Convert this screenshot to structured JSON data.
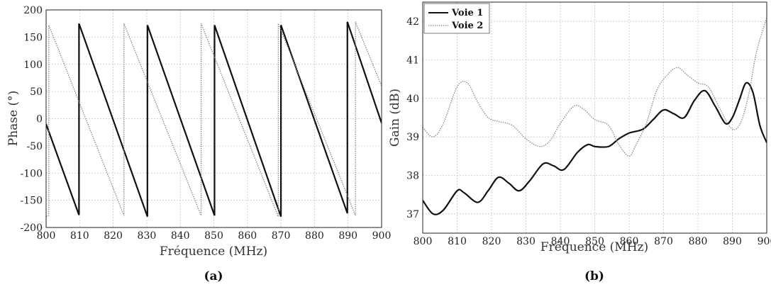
{
  "chart_data": [
    {
      "type": "line",
      "caption": "(a)",
      "xlabel": "Fréquence (MHz)",
      "ylabel": "Phase (°)",
      "xlim": [
        800,
        900
      ],
      "ylim": [
        -200,
        200
      ],
      "xticks": [
        800,
        810,
        820,
        830,
        840,
        850,
        860,
        870,
        880,
        890,
        900
      ],
      "yticks": [
        -200,
        -150,
        -100,
        -50,
        0,
        50,
        100,
        150,
        200
      ],
      "grid": true,
      "legend": "none",
      "series": [
        {
          "style": "solid",
          "color": "#111111",
          "x": [
            800,
            809.8,
            809.8,
            830.2,
            830.2,
            850.2,
            850.2,
            870,
            870,
            889.8,
            889.8,
            900
          ],
          "y": [
            -10,
            -177,
            175,
            -180,
            172,
            -178,
            172,
            -180,
            172,
            -174,
            178,
            -8
          ]
        },
        {
          "style": "dotted",
          "color": "#888888",
          "x": [
            800,
            800.8,
            800.8,
            823.2,
            823.2,
            846.2,
            846.2,
            869.2,
            869.2,
            892.2,
            892.2,
            900
          ],
          "y": [
            -180,
            -178,
            172,
            -178,
            175,
            -178,
            175,
            -180,
            175,
            -178,
            178,
            60
          ]
        }
      ]
    },
    {
      "type": "line",
      "caption": "(b)",
      "xlabel": "Fréquence (MHz)",
      "ylabel": "Gain (dB)",
      "xlim": [
        800,
        900
      ],
      "ylim": [
        36.5,
        42.5
      ],
      "xticks": [
        800,
        810,
        820,
        830,
        840,
        850,
        860,
        870,
        880,
        890,
        900
      ],
      "yticks": [
        37,
        38,
        39,
        40,
        41,
        42
      ],
      "grid": true,
      "legend": "top-left",
      "series": [
        {
          "name": "Voie 1",
          "style": "solid",
          "color": "#111111",
          "x": [
            800,
            803,
            806,
            810,
            812,
            816,
            819,
            822,
            825,
            828,
            831,
            835,
            838,
            841,
            845,
            848,
            850,
            854,
            857,
            860,
            864,
            867,
            870,
            873,
            876,
            879,
            882,
            885,
            888,
            890,
            892,
            894,
            896,
            898,
            900
          ],
          "y": [
            37.35,
            37.0,
            37.1,
            37.6,
            37.55,
            37.3,
            37.6,
            37.95,
            37.8,
            37.6,
            37.85,
            38.3,
            38.25,
            38.15,
            38.6,
            38.8,
            38.75,
            38.75,
            38.95,
            39.1,
            39.2,
            39.45,
            39.7,
            39.6,
            39.5,
            39.95,
            40.2,
            39.8,
            39.35,
            39.5,
            39.95,
            40.4,
            40.15,
            39.3,
            38.85
          ]
        },
        {
          "name": "Voie 2",
          "style": "dotted",
          "color": "#888888",
          "x": [
            800,
            803,
            806,
            810,
            813,
            816,
            819,
            822,
            826,
            830,
            834,
            837,
            840,
            844,
            847,
            850,
            854,
            857,
            860,
            862,
            865,
            868,
            871,
            874,
            877,
            880,
            883,
            886,
            889,
            891,
            893,
            895,
            897,
            900
          ],
          "y": [
            39.25,
            39.0,
            39.35,
            40.3,
            40.4,
            39.9,
            39.5,
            39.4,
            39.3,
            38.95,
            38.75,
            38.9,
            39.35,
            39.8,
            39.7,
            39.45,
            39.3,
            38.8,
            38.5,
            38.8,
            39.35,
            40.2,
            40.6,
            40.8,
            40.6,
            40.4,
            40.3,
            39.8,
            39.3,
            39.2,
            39.5,
            40.2,
            41.2,
            42.1
          ]
        }
      ]
    }
  ]
}
